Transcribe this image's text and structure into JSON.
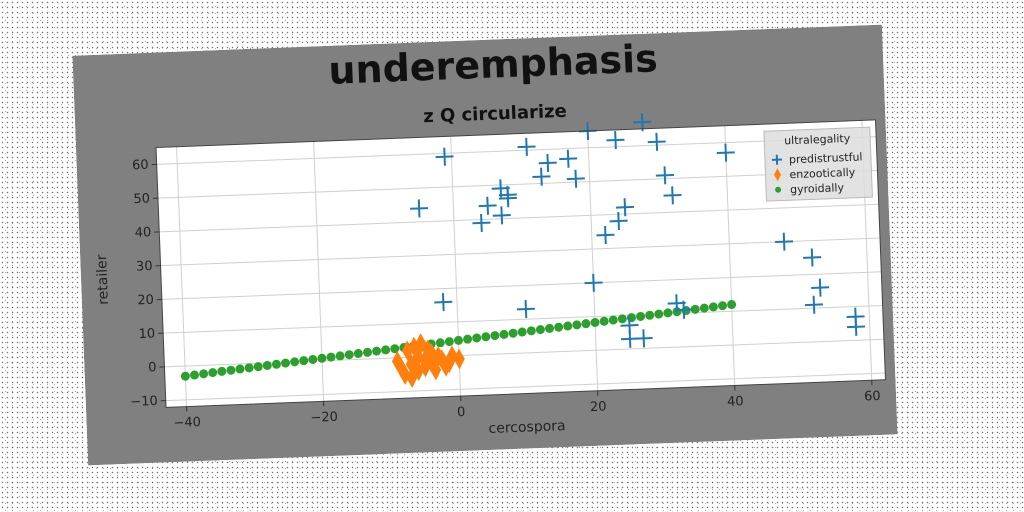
{
  "chart_data": {
    "type": "scatter",
    "title": "underemphasis",
    "subtitle": "z Q circularize",
    "xlabel": "cercospora",
    "ylabel": "retailer",
    "xlim": [
      -43,
      62
    ],
    "ylim": [
      -12,
      65
    ],
    "xticks": [
      -40,
      -20,
      0,
      20,
      40,
      60
    ],
    "yticks": [
      -10,
      0,
      10,
      20,
      30,
      40,
      50,
      60
    ],
    "grid": true,
    "legend": {
      "title": "ultralegality",
      "placement": "top-right"
    },
    "background": "#808080",
    "series": [
      {
        "name": "predistrustful",
        "marker": "plus",
        "color": "#1f77b4",
        "points": [
          [
            -5,
            44
          ],
          [
            -1,
            59
          ],
          [
            -2,
            16
          ],
          [
            4,
            39
          ],
          [
            5,
            44
          ],
          [
            7,
            49
          ],
          [
            7,
            41
          ],
          [
            8,
            46
          ],
          [
            8,
            47
          ],
          [
            10,
            13
          ],
          [
            11,
            61
          ],
          [
            13,
            52
          ],
          [
            14,
            56
          ],
          [
            17,
            57
          ],
          [
            18,
            51
          ],
          [
            20,
            65
          ],
          [
            20,
            20
          ],
          [
            22,
            34
          ],
          [
            24,
            62
          ],
          [
            24,
            38
          ],
          [
            25,
            42
          ],
          [
            25,
            7
          ],
          [
            25,
            3
          ],
          [
            27,
            3
          ],
          [
            28,
            67
          ],
          [
            30,
            61
          ],
          [
            31,
            51
          ],
          [
            32,
            45
          ],
          [
            32,
            13
          ],
          [
            33,
            11
          ],
          [
            40,
            57
          ],
          [
            48,
            30
          ],
          [
            52,
            25
          ],
          [
            52,
            11
          ],
          [
            53,
            16
          ],
          [
            58,
            4
          ],
          [
            58,
            7
          ]
        ]
      },
      {
        "name": "enzootically",
        "marker": "diamond",
        "color": "#ff7f0e",
        "points": [
          [
            -9,
            -1
          ],
          [
            -8.5,
            -3
          ],
          [
            -8,
            -5
          ],
          [
            -7.5,
            2
          ],
          [
            -7,
            -2
          ],
          [
            -7,
            -6
          ],
          [
            -6.5,
            3
          ],
          [
            -6,
            0
          ],
          [
            -6,
            -4
          ],
          [
            -5.5,
            4
          ],
          [
            -5,
            -1
          ],
          [
            -5,
            -3
          ],
          [
            -4.5,
            2
          ],
          [
            -4,
            -2
          ],
          [
            -4,
            1
          ],
          [
            -3.5,
            -4
          ],
          [
            -3,
            0
          ],
          [
            -2.5,
            -1
          ],
          [
            -2,
            -3
          ],
          [
            -1.5,
            -2
          ],
          [
            -1,
            0
          ],
          [
            0,
            -1
          ]
        ]
      },
      {
        "name": "gyroidally",
        "marker": "circle",
        "color": "#2ca02c",
        "linear": {
          "x_from": -40,
          "x_to": 40,
          "count": 61,
          "slope": 0.1875,
          "intercept": 4.5
        }
      }
    ]
  }
}
